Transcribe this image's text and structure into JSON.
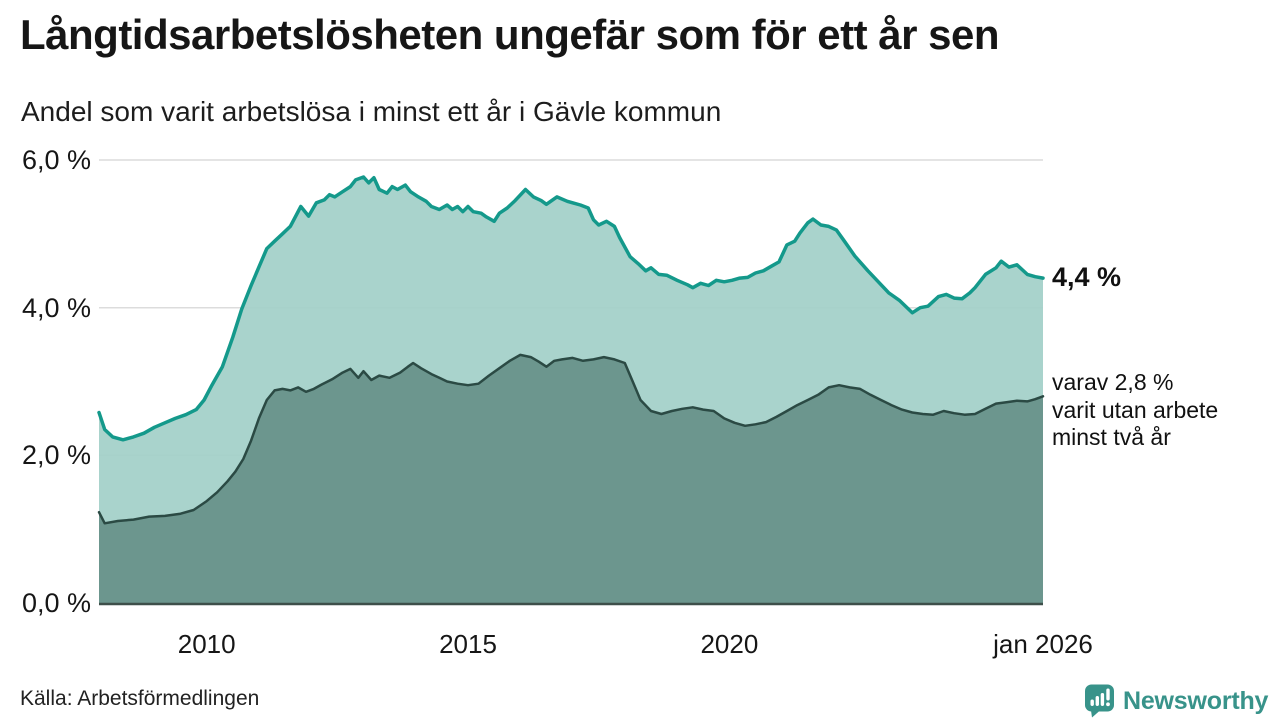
{
  "header": {
    "title": "Långtidsarbetslösheten ungefär som för ett år sen",
    "subtitle": "Andel som varit arbetslösa i minst ett år i Gävle kommun"
  },
  "annotations": {
    "total": "4,4 %",
    "two_year_lines": [
      "varav 2,8 %",
      "varit utan arbete",
      "minst två år"
    ]
  },
  "footer": {
    "source": "Källa: Arbetsförmedlingen",
    "brand": "Newsworthy"
  },
  "chart_data": {
    "type": "area",
    "title": "Långtidsarbetslösheten ungefär som för ett år sen",
    "subtitle": "Andel som varit arbetslösa i minst ett år i Gävle kommun",
    "xlabel": "",
    "ylabel": "",
    "grid": true,
    "legend_position": "none",
    "x_axis": {
      "range": [
        2007.94,
        2026.0
      ],
      "ticks": [
        {
          "label": "2010",
          "year": 2010
        },
        {
          "label": "2015",
          "year": 2015
        },
        {
          "label": "2020",
          "year": 2020
        },
        {
          "label": "jan 2026",
          "year": 2026
        }
      ]
    },
    "y_axis": {
      "range": [
        0,
        6
      ],
      "unit": "%",
      "ticks": [
        {
          "label": "0,0 %",
          "value": 0
        },
        {
          "label": "2,0 %",
          "value": 2
        },
        {
          "label": "4,0 %",
          "value": 4
        },
        {
          "label": "6,0 %",
          "value": 6
        }
      ]
    },
    "colors": {
      "grid": "#dcdcdc",
      "baseline": "#3e4f4a",
      "brand": "#38938a"
    },
    "series": [
      {
        "id": "unemployed-at-least-one-year",
        "end_label": "4,4 %",
        "latest_value": 4.4,
        "line_color": "#14998b",
        "line_width": 3.5,
        "fill_color": "#a2cfc8",
        "fill_opacity": 0.92,
        "points": [
          [
            2007.94,
            2.58
          ],
          [
            2008.05,
            2.35
          ],
          [
            2008.2,
            2.25
          ],
          [
            2008.4,
            2.21
          ],
          [
            2008.6,
            2.25
          ],
          [
            2008.8,
            2.3
          ],
          [
            2009.0,
            2.38
          ],
          [
            2009.2,
            2.44
          ],
          [
            2009.4,
            2.5
          ],
          [
            2009.6,
            2.55
          ],
          [
            2009.8,
            2.62
          ],
          [
            2009.95,
            2.75
          ],
          [
            2010.1,
            2.95
          ],
          [
            2010.3,
            3.2
          ],
          [
            2010.5,
            3.6
          ],
          [
            2010.67,
            3.98
          ],
          [
            2010.85,
            4.3
          ],
          [
            2011.0,
            4.55
          ],
          [
            2011.15,
            4.8
          ],
          [
            2011.3,
            4.9
          ],
          [
            2011.45,
            5.0
          ],
          [
            2011.6,
            5.1
          ],
          [
            2011.8,
            5.37
          ],
          [
            2011.95,
            5.24
          ],
          [
            2012.1,
            5.42
          ],
          [
            2012.25,
            5.46
          ],
          [
            2012.35,
            5.53
          ],
          [
            2012.45,
            5.5
          ],
          [
            2012.6,
            5.57
          ],
          [
            2012.75,
            5.64
          ],
          [
            2012.85,
            5.73
          ],
          [
            2013.0,
            5.77
          ],
          [
            2013.1,
            5.69
          ],
          [
            2013.2,
            5.76
          ],
          [
            2013.3,
            5.6
          ],
          [
            2013.45,
            5.55
          ],
          [
            2013.55,
            5.64
          ],
          [
            2013.65,
            5.6
          ],
          [
            2013.8,
            5.66
          ],
          [
            2013.9,
            5.57
          ],
          [
            2014.05,
            5.5
          ],
          [
            2014.2,
            5.44
          ],
          [
            2014.3,
            5.37
          ],
          [
            2014.45,
            5.33
          ],
          [
            2014.6,
            5.39
          ],
          [
            2014.7,
            5.33
          ],
          [
            2014.8,
            5.37
          ],
          [
            2014.9,
            5.3
          ],
          [
            2015.0,
            5.37
          ],
          [
            2015.1,
            5.3
          ],
          [
            2015.25,
            5.28
          ],
          [
            2015.35,
            5.23
          ],
          [
            2015.5,
            5.17
          ],
          [
            2015.6,
            5.28
          ],
          [
            2015.75,
            5.35
          ],
          [
            2015.9,
            5.45
          ],
          [
            2016.1,
            5.6
          ],
          [
            2016.25,
            5.5
          ],
          [
            2016.4,
            5.45
          ],
          [
            2016.5,
            5.4
          ],
          [
            2016.7,
            5.5
          ],
          [
            2016.9,
            5.44
          ],
          [
            2017.0,
            5.42
          ],
          [
            2017.15,
            5.39
          ],
          [
            2017.3,
            5.35
          ],
          [
            2017.4,
            5.19
          ],
          [
            2017.5,
            5.12
          ],
          [
            2017.65,
            5.17
          ],
          [
            2017.8,
            5.1
          ],
          [
            2017.9,
            4.95
          ],
          [
            2018.1,
            4.69
          ],
          [
            2018.25,
            4.6
          ],
          [
            2018.4,
            4.5
          ],
          [
            2018.5,
            4.54
          ],
          [
            2018.65,
            4.45
          ],
          [
            2018.8,
            4.44
          ],
          [
            2019.0,
            4.37
          ],
          [
            2019.2,
            4.31
          ],
          [
            2019.3,
            4.27
          ],
          [
            2019.45,
            4.33
          ],
          [
            2019.6,
            4.3
          ],
          [
            2019.75,
            4.37
          ],
          [
            2019.9,
            4.35
          ],
          [
            2020.05,
            4.37
          ],
          [
            2020.2,
            4.4
          ],
          [
            2020.35,
            4.41
          ],
          [
            2020.5,
            4.47
          ],
          [
            2020.65,
            4.5
          ],
          [
            2020.8,
            4.56
          ],
          [
            2020.95,
            4.62
          ],
          [
            2021.1,
            4.85
          ],
          [
            2021.25,
            4.9
          ],
          [
            2021.35,
            5.01
          ],
          [
            2021.5,
            5.15
          ],
          [
            2021.6,
            5.2
          ],
          [
            2021.75,
            5.12
          ],
          [
            2021.9,
            5.1
          ],
          [
            2022.05,
            5.05
          ],
          [
            2022.2,
            4.9
          ],
          [
            2022.4,
            4.7
          ],
          [
            2022.65,
            4.5
          ],
          [
            2022.85,
            4.35
          ],
          [
            2023.05,
            4.2
          ],
          [
            2023.25,
            4.1
          ],
          [
            2023.5,
            3.93
          ],
          [
            2023.65,
            4.0
          ],
          [
            2023.8,
            4.02
          ],
          [
            2024.0,
            4.15
          ],
          [
            2024.15,
            4.18
          ],
          [
            2024.3,
            4.13
          ],
          [
            2024.45,
            4.12
          ],
          [
            2024.6,
            4.2
          ],
          [
            2024.7,
            4.27
          ],
          [
            2024.9,
            4.45
          ],
          [
            2025.1,
            4.54
          ],
          [
            2025.2,
            4.63
          ],
          [
            2025.35,
            4.55
          ],
          [
            2025.5,
            4.58
          ],
          [
            2025.7,
            4.45
          ],
          [
            2025.85,
            4.42
          ],
          [
            2026.0,
            4.4
          ]
        ]
      },
      {
        "id": "unemployed-at-least-two-years",
        "end_label": "varav 2,8 % varit utan arbete minst två år",
        "latest_value": 2.8,
        "line_color": "#2b4a44",
        "line_width": 2.5,
        "fill_color": "#68928a",
        "fill_opacity": 0.95,
        "points": [
          [
            2007.94,
            1.23
          ],
          [
            2008.05,
            1.08
          ],
          [
            2008.3,
            1.11
          ],
          [
            2008.6,
            1.13
          ],
          [
            2008.9,
            1.17
          ],
          [
            2009.2,
            1.18
          ],
          [
            2009.5,
            1.21
          ],
          [
            2009.75,
            1.26
          ],
          [
            2010.0,
            1.38
          ],
          [
            2010.2,
            1.5
          ],
          [
            2010.4,
            1.65
          ],
          [
            2010.55,
            1.78
          ],
          [
            2010.7,
            1.95
          ],
          [
            2010.85,
            2.2
          ],
          [
            2011.0,
            2.5
          ],
          [
            2011.15,
            2.75
          ],
          [
            2011.3,
            2.88
          ],
          [
            2011.45,
            2.9
          ],
          [
            2011.6,
            2.88
          ],
          [
            2011.75,
            2.92
          ],
          [
            2011.9,
            2.86
          ],
          [
            2012.05,
            2.9
          ],
          [
            2012.2,
            2.96
          ],
          [
            2012.4,
            3.03
          ],
          [
            2012.6,
            3.12
          ],
          [
            2012.75,
            3.17
          ],
          [
            2012.9,
            3.05
          ],
          [
            2013.0,
            3.14
          ],
          [
            2013.15,
            3.02
          ],
          [
            2013.3,
            3.08
          ],
          [
            2013.5,
            3.05
          ],
          [
            2013.7,
            3.12
          ],
          [
            2013.85,
            3.2
          ],
          [
            2013.95,
            3.25
          ],
          [
            2014.1,
            3.18
          ],
          [
            2014.3,
            3.1
          ],
          [
            2014.45,
            3.05
          ],
          [
            2014.6,
            3.0
          ],
          [
            2014.8,
            2.97
          ],
          [
            2015.0,
            2.95
          ],
          [
            2015.2,
            2.97
          ],
          [
            2015.4,
            3.08
          ],
          [
            2015.6,
            3.18
          ],
          [
            2015.8,
            3.28
          ],
          [
            2016.0,
            3.36
          ],
          [
            2016.2,
            3.33
          ],
          [
            2016.35,
            3.27
          ],
          [
            2016.5,
            3.2
          ],
          [
            2016.65,
            3.28
          ],
          [
            2016.8,
            3.3
          ],
          [
            2017.0,
            3.32
          ],
          [
            2017.2,
            3.28
          ],
          [
            2017.4,
            3.3
          ],
          [
            2017.6,
            3.33
          ],
          [
            2017.8,
            3.3
          ],
          [
            2018.0,
            3.25
          ],
          [
            2018.15,
            3.0
          ],
          [
            2018.3,
            2.75
          ],
          [
            2018.5,
            2.6
          ],
          [
            2018.7,
            2.56
          ],
          [
            2018.9,
            2.6
          ],
          [
            2019.1,
            2.63
          ],
          [
            2019.3,
            2.65
          ],
          [
            2019.5,
            2.62
          ],
          [
            2019.7,
            2.6
          ],
          [
            2019.9,
            2.5
          ],
          [
            2020.1,
            2.44
          ],
          [
            2020.3,
            2.4
          ],
          [
            2020.5,
            2.42
          ],
          [
            2020.7,
            2.45
          ],
          [
            2020.9,
            2.52
          ],
          [
            2021.1,
            2.6
          ],
          [
            2021.3,
            2.68
          ],
          [
            2021.5,
            2.75
          ],
          [
            2021.7,
            2.82
          ],
          [
            2021.9,
            2.92
          ],
          [
            2022.1,
            2.95
          ],
          [
            2022.3,
            2.92
          ],
          [
            2022.5,
            2.9
          ],
          [
            2022.7,
            2.82
          ],
          [
            2022.9,
            2.75
          ],
          [
            2023.1,
            2.68
          ],
          [
            2023.3,
            2.62
          ],
          [
            2023.5,
            2.58
          ],
          [
            2023.7,
            2.56
          ],
          [
            2023.9,
            2.55
          ],
          [
            2024.1,
            2.6
          ],
          [
            2024.3,
            2.57
          ],
          [
            2024.5,
            2.55
          ],
          [
            2024.7,
            2.56
          ],
          [
            2024.9,
            2.63
          ],
          [
            2025.1,
            2.7
          ],
          [
            2025.3,
            2.72
          ],
          [
            2025.5,
            2.74
          ],
          [
            2025.7,
            2.73
          ],
          [
            2025.85,
            2.76
          ],
          [
            2026.0,
            2.8
          ]
        ]
      }
    ]
  }
}
